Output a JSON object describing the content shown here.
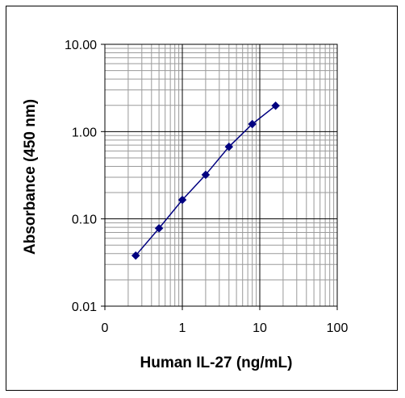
{
  "chart_data": {
    "type": "scatter",
    "title": "",
    "xlabel": "Human IL-27 (ng/mL)",
    "ylabel": "Absorbance (450 nm)",
    "x_scale": "log",
    "y_scale": "log",
    "xlim": [
      0.1,
      100
    ],
    "ylim": [
      0.01,
      10
    ],
    "x_tick_labels": [
      "0",
      "1",
      "10",
      "100"
    ],
    "x_tick_values": [
      0.1,
      1,
      10,
      100
    ],
    "y_tick_labels": [
      "0.01",
      "0.10",
      "1.00",
      "10.00"
    ],
    "y_tick_values": [
      0.01,
      0.1,
      1,
      10
    ],
    "grid": true,
    "legend": "none",
    "series": [
      {
        "marker": "diamond",
        "line": true,
        "color": "#000080",
        "x": [
          0.25,
          0.5,
          1,
          2,
          4,
          8,
          16
        ],
        "y": [
          0.038,
          0.078,
          0.165,
          0.32,
          0.67,
          1.22,
          1.98
        ]
      }
    ]
  }
}
